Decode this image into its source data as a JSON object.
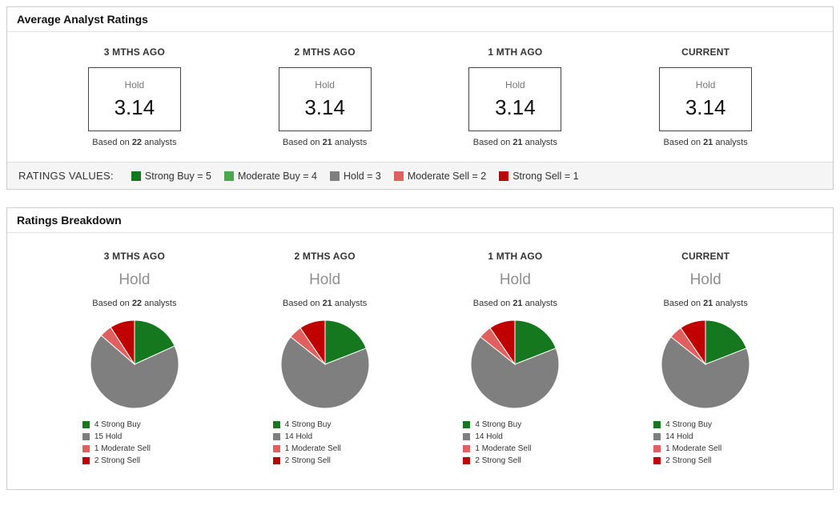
{
  "labels": {
    "based_prefix": "Based on",
    "based_suffix": "analysts"
  },
  "colors": {
    "strong_buy": "#15781f",
    "moderate_buy": "#4aa94e",
    "hold": "#7f7f7f",
    "moderate_sell": "#e06060",
    "strong_sell": "#c00000"
  },
  "panels": {
    "average": {
      "title": "Average Analyst Ratings",
      "columns": [
        {
          "period": "3 MTHS AGO",
          "rating_label": "Hold",
          "rating_value": "3.14",
          "analysts": "22"
        },
        {
          "period": "2 MTHS AGO",
          "rating_label": "Hold",
          "rating_value": "3.14",
          "analysts": "21"
        },
        {
          "period": "1 MTH AGO",
          "rating_label": "Hold",
          "rating_value": "3.14",
          "analysts": "21"
        },
        {
          "period": "CURRENT",
          "rating_label": "Hold",
          "rating_value": "3.14",
          "analysts": "21"
        }
      ],
      "legend_title": "RATINGS VALUES:",
      "legend": [
        {
          "label": "Strong Buy = 5",
          "color": "#15781f"
        },
        {
          "label": "Moderate Buy = 4",
          "color": "#4aa94e"
        },
        {
          "label": "Hold = 3",
          "color": "#7f7f7f"
        },
        {
          "label": "Moderate Sell = 2",
          "color": "#e06060"
        },
        {
          "label": "Strong Sell = 1",
          "color": "#c00000"
        }
      ]
    },
    "breakdown": {
      "title": "Ratings Breakdown",
      "columns": [
        {
          "period": "3 MTHS AGO",
          "rating_label": "Hold",
          "analysts": "22",
          "slices": [
            {
              "label": "4 Strong Buy",
              "value": 4,
              "color": "#15781f"
            },
            {
              "label": "15 Hold",
              "value": 15,
              "color": "#7f7f7f"
            },
            {
              "label": "1 Moderate Sell",
              "value": 1,
              "color": "#e06060"
            },
            {
              "label": "2 Strong Sell",
              "value": 2,
              "color": "#c00000"
            }
          ]
        },
        {
          "period": "2 MTHS AGO",
          "rating_label": "Hold",
          "analysts": "21",
          "slices": [
            {
              "label": "4 Strong Buy",
              "value": 4,
              "color": "#15781f"
            },
            {
              "label": "14 Hold",
              "value": 14,
              "color": "#7f7f7f"
            },
            {
              "label": "1 Moderate Sell",
              "value": 1,
              "color": "#e06060"
            },
            {
              "label": "2 Strong Sell",
              "value": 2,
              "color": "#c00000"
            }
          ]
        },
        {
          "period": "1 MTH AGO",
          "rating_label": "Hold",
          "analysts": "21",
          "slices": [
            {
              "label": "4 Strong Buy",
              "value": 4,
              "color": "#15781f"
            },
            {
              "label": "14 Hold",
              "value": 14,
              "color": "#7f7f7f"
            },
            {
              "label": "1 Moderate Sell",
              "value": 1,
              "color": "#e06060"
            },
            {
              "label": "2 Strong Sell",
              "value": 2,
              "color": "#c00000"
            }
          ]
        },
        {
          "period": "CURRENT",
          "rating_label": "Hold",
          "analysts": "21",
          "slices": [
            {
              "label": "4 Strong Buy",
              "value": 4,
              "color": "#15781f"
            },
            {
              "label": "14 Hold",
              "value": 14,
              "color": "#7f7f7f"
            },
            {
              "label": "1 Moderate Sell",
              "value": 1,
              "color": "#e06060"
            },
            {
              "label": "2 Strong Sell",
              "value": 2,
              "color": "#c00000"
            }
          ]
        }
      ]
    }
  },
  "chart_data": [
    {
      "type": "table",
      "title": "Average Analyst Ratings",
      "columns": [
        "3 MTHS AGO",
        "2 MTHS AGO",
        "1 MTH AGO",
        "CURRENT"
      ],
      "rows": [
        [
          "Hold",
          "Hold",
          "Hold",
          "Hold"
        ],
        [
          3.14,
          3.14,
          3.14,
          3.14
        ],
        [
          "Based on 22 analysts",
          "Based on 21 analysts",
          "Based on 21 analysts",
          "Based on 21 analysts"
        ]
      ],
      "legend": [
        "Strong Buy = 5",
        "Moderate Buy = 4",
        "Hold = 3",
        "Moderate Sell = 2",
        "Strong Sell = 1"
      ]
    },
    {
      "type": "pie",
      "title": "Ratings Breakdown - 3 MTHS AGO (Hold, 22 analysts)",
      "labels": [
        "Strong Buy",
        "Hold",
        "Moderate Sell",
        "Strong Sell"
      ],
      "values": [
        4,
        15,
        1,
        2
      ]
    },
    {
      "type": "pie",
      "title": "Ratings Breakdown - 2 MTHS AGO (Hold, 21 analysts)",
      "labels": [
        "Strong Buy",
        "Hold",
        "Moderate Sell",
        "Strong Sell"
      ],
      "values": [
        4,
        14,
        1,
        2
      ]
    },
    {
      "type": "pie",
      "title": "Ratings Breakdown - 1 MTH AGO (Hold, 21 analysts)",
      "labels": [
        "Strong Buy",
        "Hold",
        "Moderate Sell",
        "Strong Sell"
      ],
      "values": [
        4,
        14,
        1,
        2
      ]
    },
    {
      "type": "pie",
      "title": "Ratings Breakdown - CURRENT (Hold, 21 analysts)",
      "labels": [
        "Strong Buy",
        "Hold",
        "Moderate Sell",
        "Strong Sell"
      ],
      "values": [
        4,
        14,
        1,
        2
      ]
    }
  ]
}
